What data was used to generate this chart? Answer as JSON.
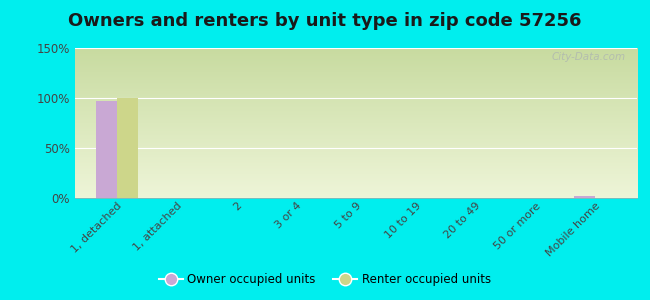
{
  "title": "Owners and renters by unit type in zip code 57256",
  "categories": [
    "1, detached",
    "1, attached",
    "2",
    "3 or 4",
    "5 to 9",
    "10 to 19",
    "20 to 49",
    "50 or more",
    "Mobile home"
  ],
  "owner_values": [
    97,
    0,
    0,
    0,
    0,
    0,
    0,
    0,
    2
  ],
  "renter_values": [
    100,
    0,
    0,
    0,
    0,
    0,
    0,
    0,
    0
  ],
  "owner_color": "#c9a8d4",
  "renter_color": "#cdd68a",
  "ylim": [
    0,
    150
  ],
  "yticks": [
    0,
    50,
    100,
    150
  ],
  "ytick_labels": [
    "0%",
    "50%",
    "100%",
    "150%"
  ],
  "plot_bg_top": "#c8dba0",
  "plot_bg_bottom": "#eef5d8",
  "outer_background": "#00eeee",
  "bar_width": 0.35,
  "watermark": "City-Data.com",
  "title_fontsize": 13,
  "tick_color": "#444444"
}
